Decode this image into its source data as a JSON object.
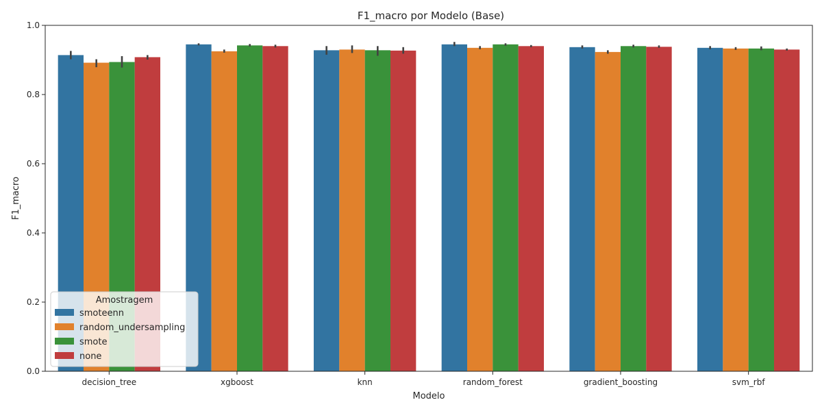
{
  "chart_data": {
    "type": "bar",
    "title": "F1_macro por Modelo (Base)",
    "xlabel": "Modelo",
    "ylabel": "F1_macro",
    "ylim": [
      0.0,
      1.0
    ],
    "yticks": [
      "0.0",
      "0.2",
      "0.4",
      "0.6",
      "0.8",
      "1.0"
    ],
    "categories": [
      "decision_tree",
      "xgboost",
      "knn",
      "random_forest",
      "gradient_boosting",
      "svm_rbf"
    ],
    "legend": {
      "title": "Amostragem",
      "placement": "lower-left"
    },
    "grid": false,
    "series": [
      {
        "name": "smoteenn",
        "color": "#3274a1",
        "values": [
          0.914,
          0.945,
          0.928,
          0.945,
          0.937,
          0.935
        ],
        "err_low": [
          0.902,
          0.942,
          0.915,
          0.94,
          0.933,
          0.931
        ],
        "err_high": [
          0.926,
          0.948,
          0.94,
          0.952,
          0.942,
          0.94
        ]
      },
      {
        "name": "random_undersampling",
        "color": "#e1812c",
        "values": [
          0.892,
          0.925,
          0.93,
          0.935,
          0.923,
          0.933
        ],
        "err_low": [
          0.879,
          0.921,
          0.92,
          0.931,
          0.918,
          0.929
        ],
        "err_high": [
          0.902,
          0.93,
          0.942,
          0.94,
          0.928,
          0.937
        ]
      },
      {
        "name": "smote",
        "color": "#3a923a",
        "values": [
          0.894,
          0.942,
          0.928,
          0.945,
          0.94,
          0.933
        ],
        "err_low": [
          0.878,
          0.939,
          0.912,
          0.941,
          0.936,
          0.928
        ],
        "err_high": [
          0.911,
          0.946,
          0.94,
          0.948,
          0.944,
          0.939
        ]
      },
      {
        "name": "none",
        "color": "#c03d3e",
        "values": [
          0.908,
          0.94,
          0.927,
          0.94,
          0.938,
          0.93
        ],
        "err_low": [
          0.901,
          0.936,
          0.918,
          0.937,
          0.935,
          0.927
        ],
        "err_high": [
          0.914,
          0.944,
          0.937,
          0.943,
          0.942,
          0.933
        ]
      }
    ]
  }
}
